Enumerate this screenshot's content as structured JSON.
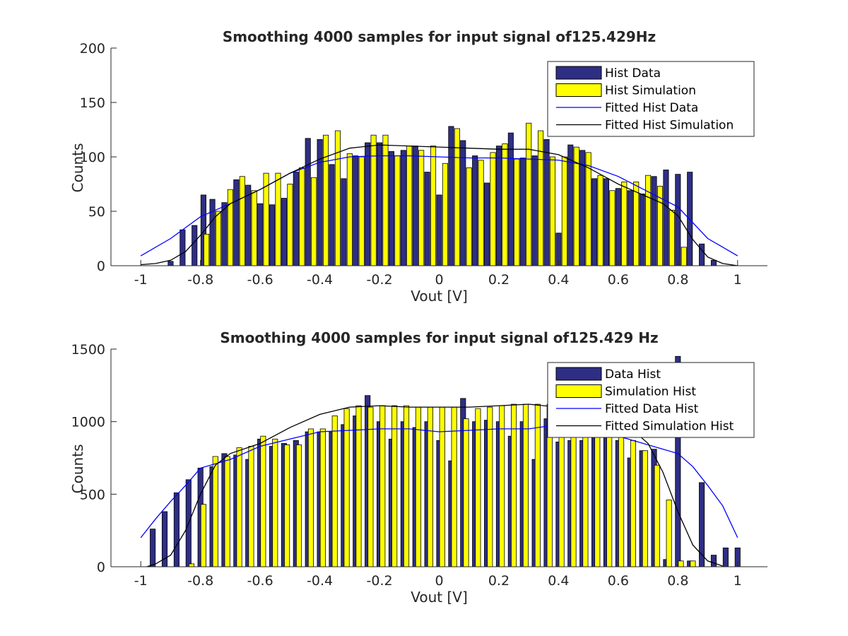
{
  "colors": {
    "data_bar": "#2e2e84",
    "sim_bar": "#ffff00",
    "fit_data": "#0000ff",
    "fit_sim": "#000000"
  },
  "chart_data": [
    {
      "type": "bar",
      "title": "Smoothing 4000 samples for input signal of125.429Hz",
      "xlabel": "Vout [V]",
      "ylabel": "Counts",
      "xlim": [
        -1.1,
        1.1
      ],
      "ylim": [
        0,
        200
      ],
      "xticks": [
        -1,
        -0.8,
        -0.6,
        -0.4,
        -0.2,
        0,
        0.2,
        0.4,
        0.6,
        0.8,
        1
      ],
      "xtick_labels": [
        "-1",
        "-0.8",
        "-0.6",
        "-0.4",
        "-0.2",
        "0",
        "0.2",
        "0.4",
        "0.6",
        "0.8",
        "1"
      ],
      "yticks": [
        0,
        50,
        100,
        150,
        200
      ],
      "ytick_labels": [
        "0",
        "50",
        "100",
        "150",
        "200"
      ],
      "legend_position": "top-right",
      "series": [
        {
          "name": "Hist Data",
          "kind": "bar",
          "x": [
            -0.9,
            -0.86,
            -0.82,
            -0.79,
            -0.76,
            -0.72,
            -0.68,
            -0.64,
            -0.6,
            -0.56,
            -0.52,
            -0.48,
            -0.44,
            -0.4,
            -0.36,
            -0.32,
            -0.28,
            -0.24,
            -0.2,
            -0.16,
            -0.12,
            -0.08,
            -0.04,
            0.0,
            0.04,
            0.08,
            0.12,
            0.16,
            0.2,
            0.24,
            0.28,
            0.32,
            0.36,
            0.4,
            0.44,
            0.48,
            0.52,
            0.56,
            0.6,
            0.64,
            0.68,
            0.72,
            0.76,
            0.8,
            0.84,
            0.88,
            0.92
          ],
          "values": [
            4,
            33,
            37,
            65,
            61,
            58,
            79,
            74,
            57,
            56,
            62,
            86,
            117,
            116,
            93,
            80,
            101,
            113,
            113,
            105,
            106,
            110,
            86,
            65,
            128,
            115,
            101,
            76,
            110,
            122,
            99,
            101,
            116,
            30,
            111,
            106,
            80,
            80,
            71,
            69,
            66,
            82,
            88,
            84,
            86,
            20,
            5
          ]
        },
        {
          "name": "Hist Simulation",
          "kind": "bar",
          "x": [
            -0.78,
            -0.74,
            -0.7,
            -0.66,
            -0.62,
            -0.58,
            -0.54,
            -0.5,
            -0.46,
            -0.42,
            -0.38,
            -0.34,
            -0.3,
            -0.26,
            -0.22,
            -0.18,
            -0.14,
            -0.1,
            -0.06,
            -0.02,
            0.02,
            0.06,
            0.1,
            0.14,
            0.18,
            0.22,
            0.26,
            0.3,
            0.34,
            0.38,
            0.42,
            0.46,
            0.5,
            0.54,
            0.58,
            0.62,
            0.66,
            0.7,
            0.74,
            0.78,
            0.82
          ],
          "values": [
            29,
            50,
            70,
            82,
            69,
            85,
            85,
            75,
            90,
            81,
            120,
            124,
            103,
            100,
            120,
            120,
            101,
            110,
            106,
            110,
            94,
            126,
            90,
            97,
            104,
            112,
            98,
            131,
            124,
            100,
            100,
            109,
            104,
            83,
            69,
            77,
            77,
            83,
            73,
            51,
            17
          ]
        },
        {
          "name": "Fitted Hist Data",
          "kind": "line",
          "x": [
            -1.0,
            -0.9,
            -0.8,
            -0.7,
            -0.6,
            -0.5,
            -0.4,
            -0.3,
            -0.2,
            -0.1,
            0.0,
            0.1,
            0.2,
            0.3,
            0.4,
            0.5,
            0.6,
            0.7,
            0.8,
            0.9,
            1.0
          ],
          "values": [
            9,
            25,
            45,
            57,
            70,
            85,
            95,
            100,
            101,
            101,
            100,
            99,
            99,
            98,
            97,
            92,
            82,
            68,
            54,
            25,
            9
          ]
        },
        {
          "name": "Fitted Hist Simulation",
          "kind": "line",
          "x": [
            -1.0,
            -0.95,
            -0.9,
            -0.85,
            -0.8,
            -0.75,
            -0.7,
            -0.6,
            -0.5,
            -0.4,
            -0.3,
            -0.2,
            -0.1,
            0.0,
            0.1,
            0.2,
            0.3,
            0.4,
            0.5,
            0.6,
            0.7,
            0.75,
            0.8,
            0.85,
            0.9,
            0.95,
            1.0
          ],
          "values": [
            1,
            2,
            5,
            13,
            28,
            45,
            57,
            70,
            85,
            98,
            108,
            111,
            110,
            109,
            108,
            107,
            107,
            102,
            90,
            75,
            63,
            57,
            46,
            24,
            8,
            2,
            0
          ]
        }
      ]
    },
    {
      "type": "bar",
      "title": "Smoothing 4000 samples for input signal of125.429 Hz",
      "xlabel": "Vout [V]",
      "ylabel": "Counts",
      "xlim": [
        -1.1,
        1.1
      ],
      "ylim": [
        0,
        1500
      ],
      "xticks": [
        -1,
        -0.8,
        -0.6,
        -0.4,
        -0.2,
        0,
        0.2,
        0.4,
        0.6,
        0.8,
        1
      ],
      "xtick_labels": [
        "-1",
        "-0.8",
        "-0.6",
        "-0.4",
        "-0.2",
        "0",
        "0.2",
        "0.4",
        "0.6",
        "0.8",
        "1"
      ],
      "yticks": [
        0,
        500,
        1000,
        1500
      ],
      "ytick_labels": [
        "0",
        "500",
        "1000",
        "1500"
      ],
      "legend_position": "top-right",
      "series": [
        {
          "name": "Data Hist",
          "kind": "bar",
          "x": [
            -0.96,
            -0.92,
            -0.88,
            -0.84,
            -0.8,
            -0.76,
            -0.72,
            -0.68,
            -0.64,
            -0.6,
            -0.56,
            -0.52,
            -0.48,
            -0.44,
            -0.4,
            -0.36,
            -0.32,
            -0.28,
            -0.24,
            -0.2,
            -0.16,
            -0.12,
            -0.08,
            -0.04,
            0.0,
            0.04,
            0.08,
            0.12,
            0.16,
            0.2,
            0.24,
            0.28,
            0.32,
            0.36,
            0.4,
            0.44,
            0.48,
            0.52,
            0.56,
            0.6,
            0.64,
            0.68,
            0.72,
            0.76,
            0.8,
            0.84,
            0.88,
            0.92,
            0.96,
            1.0
          ],
          "values": [
            260,
            380,
            510,
            600,
            680,
            690,
            780,
            770,
            740,
            880,
            830,
            850,
            870,
            930,
            930,
            930,
            980,
            1040,
            1180,
            1000,
            880,
            1000,
            960,
            1000,
            870,
            730,
            1160,
            1000,
            1010,
            1000,
            900,
            1000,
            740,
            1020,
            860,
            870,
            870,
            890,
            890,
            870,
            750,
            800,
            810,
            50,
            1450,
            40,
            580,
            80,
            130,
            130
          ]
        },
        {
          "name": "Simulation Hist",
          "kind": "bar",
          "x": [
            -0.83,
            -0.79,
            -0.75,
            -0.71,
            -0.67,
            -0.63,
            -0.59,
            -0.55,
            -0.51,
            -0.47,
            -0.43,
            -0.39,
            -0.35,
            -0.31,
            -0.27,
            -0.23,
            -0.19,
            -0.15,
            -0.11,
            -0.07,
            -0.03,
            0.01,
            0.05,
            0.09,
            0.13,
            0.17,
            0.21,
            0.25,
            0.29,
            0.33,
            0.37,
            0.41,
            0.45,
            0.49,
            0.53,
            0.57,
            0.61,
            0.65,
            0.69,
            0.73,
            0.77,
            0.81,
            0.85
          ],
          "values": [
            20,
            430,
            760,
            760,
            820,
            830,
            900,
            880,
            840,
            840,
            950,
            950,
            1040,
            1090,
            1110,
            1100,
            1110,
            1110,
            1110,
            1100,
            1100,
            1100,
            1100,
            1020,
            1090,
            1100,
            1110,
            1120,
            1120,
            1120,
            1120,
            1020,
            1080,
            1000,
            1000,
            990,
            950,
            870,
            800,
            700,
            460,
            40,
            40
          ]
        },
        {
          "name": "Fitted Data Hist",
          "kind": "line",
          "x": [
            -1.0,
            -0.95,
            -0.9,
            -0.85,
            -0.8,
            -0.7,
            -0.6,
            -0.5,
            -0.4,
            -0.3,
            -0.2,
            -0.1,
            0.0,
            0.1,
            0.2,
            0.3,
            0.4,
            0.5,
            0.6,
            0.7,
            0.8,
            0.85,
            0.9,
            0.95,
            1.0
          ],
          "values": [
            200,
            330,
            450,
            560,
            680,
            740,
            830,
            880,
            930,
            940,
            950,
            950,
            930,
            940,
            950,
            950,
            980,
            950,
            900,
            840,
            780,
            690,
            560,
            420,
            200
          ]
        },
        {
          "name": "Fitted Simulation Hist",
          "kind": "line",
          "x": [
            -0.98,
            -0.95,
            -0.9,
            -0.85,
            -0.8,
            -0.75,
            -0.7,
            -0.6,
            -0.5,
            -0.4,
            -0.3,
            -0.2,
            -0.1,
            0.0,
            0.1,
            0.2,
            0.3,
            0.4,
            0.5,
            0.6,
            0.65,
            0.7,
            0.75,
            0.8,
            0.85,
            0.9,
            0.95
          ],
          "values": [
            0,
            20,
            80,
            250,
            500,
            700,
            780,
            850,
            960,
            1050,
            1100,
            1110,
            1100,
            1100,
            1100,
            1110,
            1120,
            1100,
            1060,
            990,
            940,
            850,
            650,
            380,
            150,
            40,
            5
          ]
        }
      ]
    }
  ]
}
